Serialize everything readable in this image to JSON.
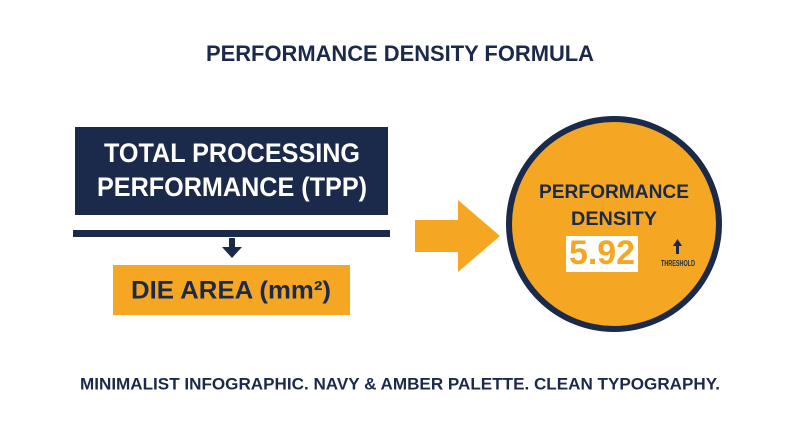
{
  "title": "PERFORMANCE DENSITY FORMULA",
  "numerator": {
    "lines": [
      "TOTAL PROCESSING",
      "PERFORMANCE (TPP)"
    ]
  },
  "denominator": {
    "label": "DIE AREA (mm²)"
  },
  "result": {
    "lines": [
      "PERFORMANCE",
      "DENSITY"
    ],
    "value": 5.92,
    "note": "THRESHOLD"
  },
  "footer": "MINIMALIST INFOGRAPHIC. NAVY & AMBER PALETTE. CLEAN TYPOGRAPHY."
}
